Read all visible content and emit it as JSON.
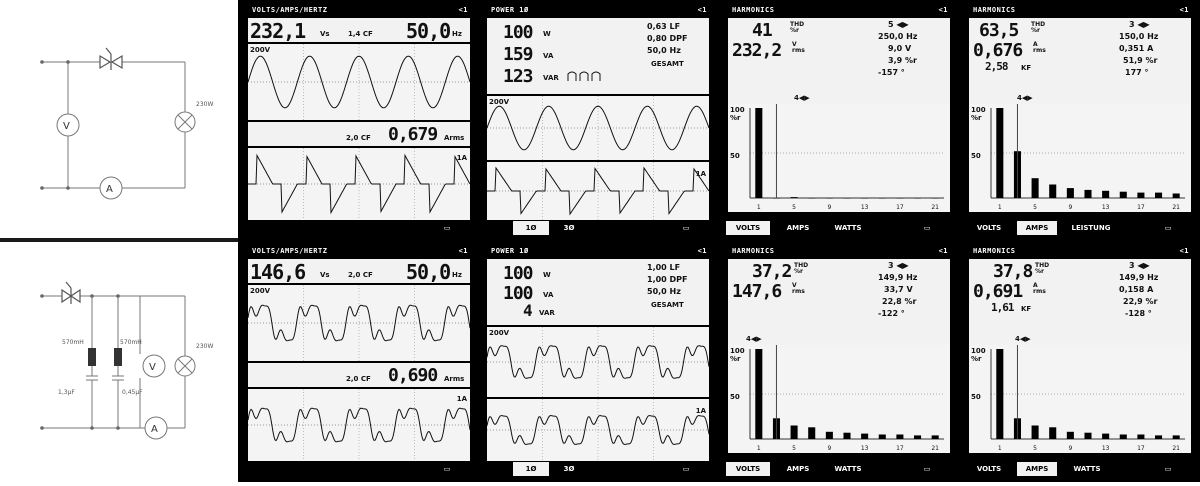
{
  "circuit_top": {
    "lamp_label": "230W"
  },
  "circuit_bottom": {
    "choke1_label": "570mH",
    "choke2_label": "570mH",
    "lamp_label": "230W",
    "cap1_label": "1,3µF",
    "cap2_label": "0,45µF"
  },
  "meters": {
    "volt": "V",
    "amp": "A"
  },
  "screens": {
    "top": {
      "vah": {
        "title": "VOLTS/AMPS/HERTZ",
        "ind": "<1",
        "v_reading": "232,1",
        "v_unit": "Vs",
        "cf1": "1,4 CF",
        "hz_reading": "50,0",
        "hz_unit": "Hz",
        "scale1": "200V",
        "cf2": "2,0 CF",
        "a_reading": "0,679",
        "a_unit": "Arms",
        "scale2": "1A"
      },
      "power": {
        "title": "POWER 1Ø",
        "ind": "<1",
        "r1": "100",
        "r1u": "W",
        "r2": "159",
        "r2u": "VA",
        "r3": "123",
        "r3u": "VAR",
        "s1": "0,63 LF",
        "s2": "0,80 DPF",
        "s3": "50,0 Hz",
        "mode": "GESAMT",
        "scale1": "200V",
        "scale2": "1A",
        "tab1": "1Ø",
        "tab2": "3Ø"
      },
      "harm_v": {
        "title": "HARMONICS",
        "ind": "<1",
        "r1": "41",
        "r1u": "THD %r",
        "r2": "232,2",
        "r2u": "V rms",
        "s1": "5 ◀▶",
        "s2": "250,0 Hz",
        "s3": "9,0 V",
        "s4": "3,9 %r",
        "s5": "-157 °",
        "ylabel": "%r",
        "y_top": "100",
        "y_mid": "50",
        "cursor": "4◀▶",
        "tab1": "VOLTS",
        "tab2": "AMPS",
        "tab3": "WATTS"
      },
      "harm_a": {
        "title": "HARMONICS",
        "ind": "<1",
        "r1": "63,5",
        "r1u": "THD %r",
        "r2": "0,676",
        "r2u": "A rms",
        "r3": "2,58",
        "r3u": "KF",
        "s1": "3 ◀▶",
        "s2": "150,0 Hz",
        "s3": "0,351 A",
        "s4": "51,9 %r",
        "s5": "177 °",
        "ylabel": "%r",
        "y_top": "100",
        "y_mid": "50",
        "cursor": "4◀▶",
        "tab1": "VOLTS",
        "tab2": "AMPS",
        "tab3": "LEISTUNG"
      }
    },
    "bottom": {
      "vah": {
        "title": "VOLTS/AMPS/HERTZ",
        "ind": "<1",
        "v_reading": "146,6",
        "v_unit": "Vs",
        "cf1": "2,0 CF",
        "hz_reading": "50,0",
        "hz_unit": "Hz",
        "scale1": "200V",
        "cf2": "2,0 CF",
        "a_reading": "0,690",
        "a_unit": "Arms",
        "scale2": "1A"
      },
      "power": {
        "title": "POWER 1Ø",
        "ind": "<1",
        "r1": "100",
        "r1u": "W",
        "r2": "100",
        "r2u": "VA",
        "r3": "4",
        "r3u": "VAR",
        "s1": "1,00 LF",
        "s2": "1,00 DPF",
        "s3": "50,0 Hz",
        "mode": "GESAMT",
        "scale1": "200V",
        "scale2": "1A",
        "tab1": "1Ø",
        "tab2": "3Ø"
      },
      "harm_v": {
        "title": "HARMONICS",
        "ind": "<1",
        "r1": "37,2",
        "r1u": "THD %r",
        "r2": "147,6",
        "r2u": "V rms",
        "s1": "3 ◀▶",
        "s2": "149,9 Hz",
        "s3": "33,7 V",
        "s4": "22,8 %r",
        "s5": "-122 °",
        "ylabel": "%r",
        "y_top": "100",
        "y_mid": "50",
        "cursor": "4◀▶",
        "tab1": "VOLTS",
        "tab2": "AMPS",
        "tab3": "WATTS"
      },
      "harm_a": {
        "title": "HARMONICS",
        "ind": "<1",
        "r1": "37,8",
        "r1u": "THD %r",
        "r2": "0,691",
        "r2u": "A rms",
        "r3": "1,61",
        "r3u": "KF",
        "s1": "3 ◀▶",
        "s2": "149,9 Hz",
        "s3": "0,158 A",
        "s4": "22,9 %r",
        "s5": "-128 °",
        "ylabel": "%r",
        "y_top": "100",
        "y_mid": "50",
        "cursor": "4◀▶",
        "tab1": "VOLTS",
        "tab2": "AMPS",
        "tab3": "WATTS"
      }
    }
  },
  "harmonic_axis": [
    "1",
    "5",
    "9",
    "13",
    "17",
    "21"
  ],
  "spectra": {
    "top_v": [
      100,
      0,
      1,
      0,
      0,
      0,
      0,
      0,
      0,
      0,
      0
    ],
    "top_a": [
      100,
      52,
      22,
      15,
      11,
      9,
      8,
      7,
      6,
      6,
      5
    ],
    "bottom_v": [
      100,
      23,
      15,
      13,
      8,
      7,
      6,
      5,
      5,
      4,
      4
    ],
    "bottom_a": [
      100,
      23,
      15,
      13,
      8,
      7,
      6,
      5,
      5,
      4,
      4
    ]
  }
}
